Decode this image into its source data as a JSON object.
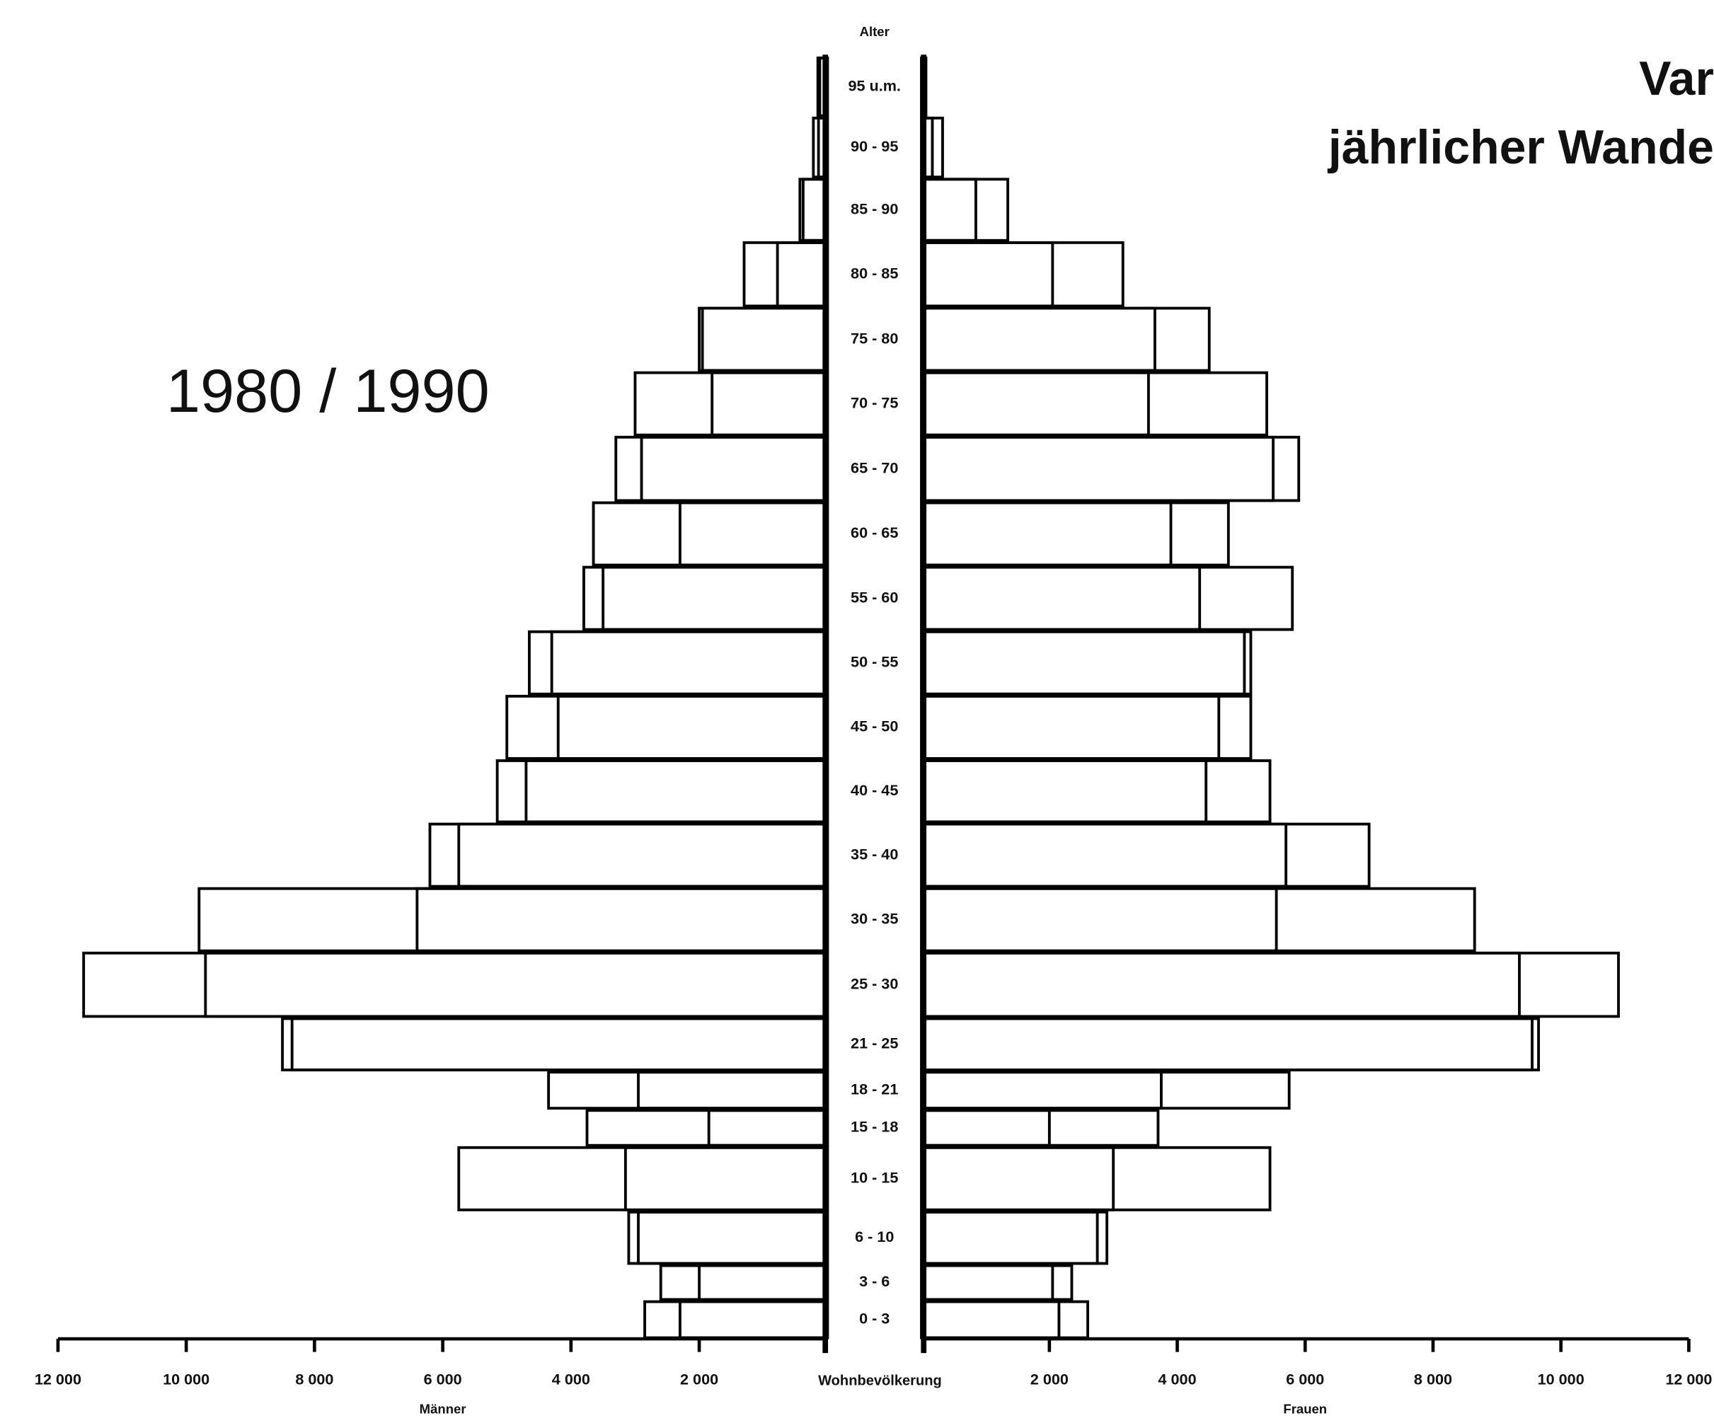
{
  "chart_data": {
    "type": "population-pyramid",
    "title": "1980 / 1990",
    "heading": [
      "Var",
      "jährlicher Wande"
    ],
    "age_label": "Alter",
    "center_label": "Wohnbevölkerung",
    "categories": [
      "95 u.m.",
      "90 - 95",
      "85 - 90",
      "80 - 85",
      "75 - 80",
      "70 - 75",
      "65 - 70",
      "60 - 65",
      "55 - 60",
      "50 - 55",
      "45 - 50",
      "40 - 45",
      "35 - 40",
      "30 - 35",
      "25 - 30",
      "21 - 25",
      "18 - 21",
      "15 - 18",
      "10 - 15",
      "6 - 10",
      "3 - 6",
      "0 - 3"
    ],
    "left": {
      "label": "Männer",
      "xlim": [
        0,
        12000
      ],
      "xticks": [
        {
          "value": 12000,
          "label": "12 000"
        },
        {
          "value": 10000,
          "label": "10 000"
        },
        {
          "value": 8000,
          "label": "8 000"
        },
        {
          "value": 6000,
          "label": "6 000"
        },
        {
          "value": 4000,
          "label": "4 000"
        },
        {
          "value": 2000,
          "label": "2 000"
        }
      ],
      "series": [
        {
          "color": "#000000",
          "values": [
            150,
            220,
            430,
            1300,
            2000,
            3000,
            3300,
            3650,
            3800,
            4650,
            5000,
            5150,
            6200,
            9800,
            11600,
            8500,
            4350,
            3750,
            5750,
            3100,
            2600,
            2850
          ]
        },
        {
          "color": "#000000",
          "values": [
            120,
            140,
            380,
            780,
            1950,
            1800,
            2900,
            2300,
            3500,
            4300,
            4200,
            4700,
            5750,
            6400,
            9700,
            8350,
            2950,
            1850,
            3150,
            2950,
            2000,
            2300
          ]
        }
      ]
    },
    "right": {
      "label": "Frauen",
      "xlim": [
        0,
        12000
      ],
      "xticks": [
        {
          "value": 2000,
          "label": "2 000"
        },
        {
          "value": 4000,
          "label": "4 000"
        },
        {
          "value": 6000,
          "label": "6 000"
        },
        {
          "value": 8000,
          "label": "8 000"
        },
        {
          "value": 10000,
          "label": "10 000"
        },
        {
          "value": 12000,
          "label": "12 000"
        }
      ],
      "series": [
        {
          "color": "#000000",
          "values": [
            50,
            170,
            850,
            2050,
            3650,
            3550,
            5500,
            3900,
            4350,
            5050,
            4650,
            4450,
            5700,
            5550,
            9350,
            9550,
            3750,
            2000,
            3000,
            2750,
            2050,
            2150
          ]
        },
        {
          "color": "#000000",
          "values": [
            70,
            330,
            1350,
            3150,
            4500,
            5400,
            5900,
            4800,
            5800,
            5150,
            5150,
            5450,
            7000,
            8650,
            10900,
            9650,
            5750,
            3700,
            5450,
            2900,
            2350,
            2600
          ]
        }
      ]
    }
  }
}
